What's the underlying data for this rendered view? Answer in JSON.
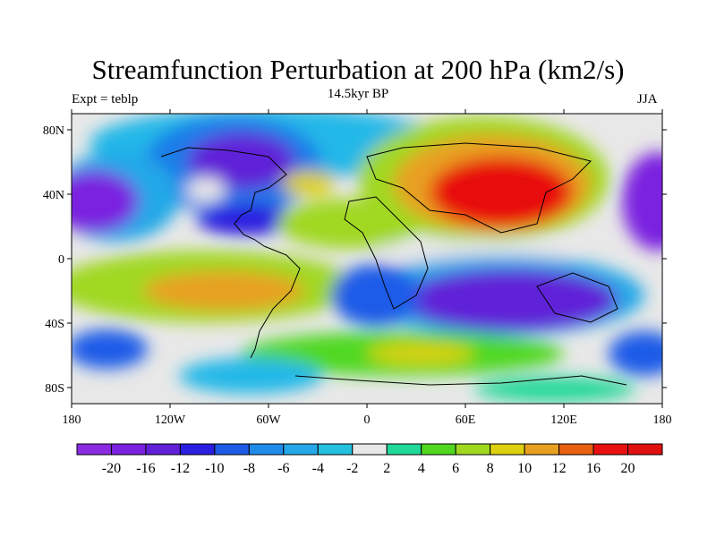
{
  "figure": {
    "title": "Streamfunction Perturbation at 200 hPa (km2/s)",
    "subtitle": "14.5kyr BP",
    "left_label": "Expt = teblp",
    "right_label": "JJA"
  },
  "axes": {
    "lat_ticks": [
      "80N",
      "40N",
      "0",
      "40S",
      "80S"
    ],
    "lat_values": [
      80,
      40,
      0,
      -40,
      -80
    ],
    "lon_ticks": [
      "180",
      "120W",
      "60W",
      "0",
      "60E",
      "120E",
      "180"
    ],
    "lon_values": [
      -180,
      -120,
      -60,
      0,
      60,
      120,
      180
    ],
    "lon_range": [
      -180,
      180
    ],
    "lat_range": [
      -90,
      90
    ]
  },
  "colorbar": {
    "levels": [
      "-20",
      "-16",
      "-12",
      "-10",
      "-8",
      "-6",
      "-4",
      "-2",
      "2",
      "4",
      "6",
      "8",
      "10",
      "12",
      "16",
      "20"
    ],
    "colors": [
      "#8a2be2",
      "#7a22e0",
      "#6020d8",
      "#2a1ee0",
      "#1e5ce8",
      "#1e8ce8",
      "#24a8e8",
      "#24c0e0",
      "#e8e8e8",
      "#20d898",
      "#50d820",
      "#a0d820",
      "#dcd010",
      "#e8a020",
      "#e86010",
      "#e81010",
      "#e01010"
    ]
  }
}
